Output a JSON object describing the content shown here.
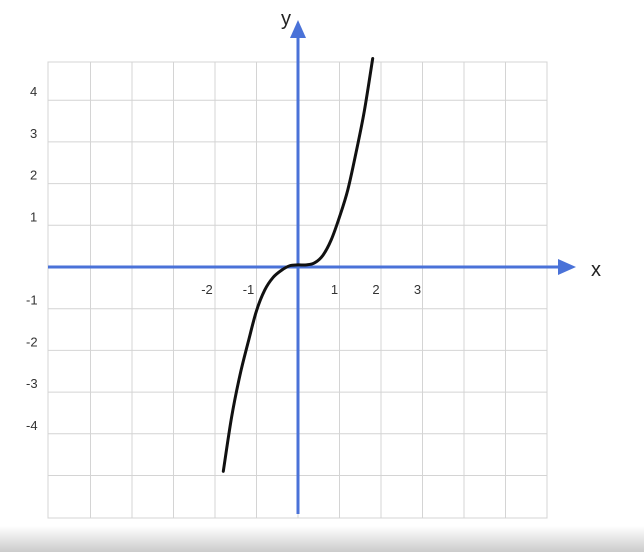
{
  "chart_data": {
    "type": "line",
    "xlabel": "x",
    "ylabel": "y",
    "x_tick_labels": [
      "-2",
      "-1",
      "1",
      "2",
      "3"
    ],
    "x_tick_values": [
      -2,
      -1,
      1,
      2,
      3
    ],
    "y_tick_labels": [
      "4",
      "3",
      "2",
      "1",
      "-1",
      "-2",
      "-3",
      "-4"
    ],
    "y_tick_values": [
      4,
      3,
      2,
      1,
      -1,
      -2,
      -3,
      -4
    ],
    "xlim": [
      -6,
      6
    ],
    "ylim": [
      -6,
      5
    ],
    "grid": true,
    "series": [
      {
        "x": [
          -1.8,
          -1.6,
          -1.4,
          -1.2,
          -1.0,
          -0.8,
          -0.6,
          -0.4,
          -0.2,
          0,
          0.2,
          0.4,
          0.6,
          0.8,
          1.0,
          1.2,
          1.4,
          1.6,
          1.8
        ],
        "y": [
          -4.9,
          -3.6,
          -2.6,
          -1.8,
          -1.05,
          -0.55,
          -0.25,
          -0.08,
          0.03,
          0.05,
          0.05,
          0.1,
          0.28,
          0.65,
          1.2,
          1.85,
          2.75,
          3.75,
          5.0
        ]
      }
    ],
    "colors": {
      "curve": "#111111",
      "axes": "#4a72d8",
      "grid": "#d4d4d4"
    }
  }
}
